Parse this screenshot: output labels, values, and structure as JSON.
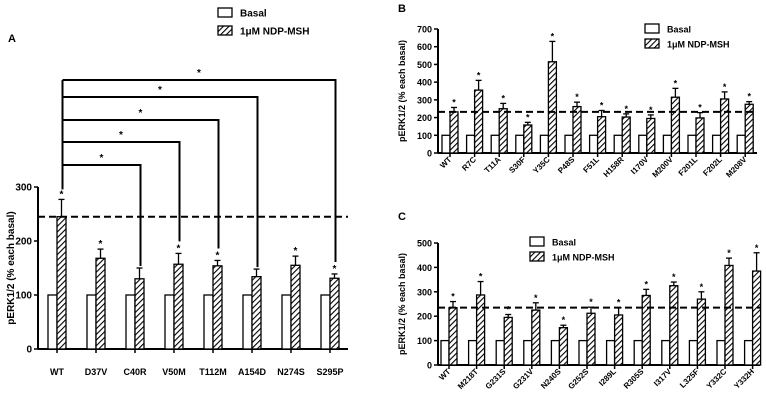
{
  "legend": {
    "basal": "Basal",
    "treated": "1μM NDP-MSH"
  },
  "chart_data": [
    {
      "panel": "A",
      "type": "bar",
      "ylabel": "pERK1/2 (% each basal)",
      "ylim": [
        0,
        300
      ],
      "yticks": [
        "0",
        "100",
        "200",
        "300"
      ],
      "reference_line": 245,
      "categories": [
        "WT",
        "D37V",
        "C40R",
        "V50M",
        "T112M",
        "A154D",
        "N274S",
        "S295P"
      ],
      "series": [
        {
          "name": "Basal",
          "values": [
            100,
            100,
            100,
            100,
            100,
            100,
            100,
            100
          ]
        },
        {
          "name": "1μM NDP-MSH",
          "values": [
            245,
            168,
            130,
            157,
            154,
            134,
            155,
            131
          ],
          "errors": [
            32,
            17,
            20,
            20,
            10,
            14,
            17,
            8
          ],
          "significant": [
            true,
            true,
            false,
            true,
            true,
            false,
            true,
            true
          ]
        }
      ],
      "brackets": [
        {
          "from": "WT",
          "to": "C40R",
          "label": "*"
        },
        {
          "from": "WT",
          "to": "V50M",
          "label": "*"
        },
        {
          "from": "WT",
          "to": "T112M",
          "label": "*"
        },
        {
          "from": "WT",
          "to": "A154D",
          "label": "*"
        },
        {
          "from": "WT",
          "to": "S295P",
          "label": "*"
        }
      ]
    },
    {
      "panel": "B",
      "type": "bar",
      "ylabel": "pERK1/2 (% each basal)",
      "ylim": [
        0,
        700
      ],
      "yticks": [
        "0",
        "100",
        "200",
        "300",
        "400",
        "500",
        "600",
        "700"
      ],
      "reference_line": 232,
      "categories": [
        "WT",
        "R7C",
        "T11A",
        "S30F",
        "Y35C",
        "P48S",
        "F51L",
        "H158R",
        "I170V",
        "M200V",
        "F201L",
        "F202L",
        "M208V"
      ],
      "series": [
        {
          "name": "Basal",
          "values": [
            100,
            100,
            100,
            100,
            100,
            100,
            100,
            100,
            100,
            100,
            100,
            100,
            100
          ]
        },
        {
          "name": "1μM NDP-MSH",
          "values": [
            232,
            355,
            250,
            158,
            515,
            262,
            205,
            203,
            195,
            315,
            198,
            305,
            275
          ],
          "errors": [
            25,
            55,
            30,
            15,
            115,
            25,
            35,
            18,
            20,
            50,
            30,
            40,
            15
          ],
          "significant": [
            true,
            true,
            true,
            true,
            true,
            true,
            true,
            true,
            true,
            true,
            true,
            true,
            true
          ]
        }
      ]
    },
    {
      "panel": "C",
      "type": "bar",
      "ylabel": "pERK1/2 (% each basal)",
      "ylim": [
        0,
        500
      ],
      "yticks": [
        "0",
        "100",
        "200",
        "300",
        "400",
        "500"
      ],
      "reference_line": 235,
      "categories": [
        "WT",
        "M218T",
        "G231S",
        "G231V",
        "N240S",
        "G252S",
        "I289L",
        "R305S",
        "I317V",
        "L325F",
        "Y332C",
        "Y332H"
      ],
      "series": [
        {
          "name": "Basal",
          "values": [
            100,
            100,
            100,
            100,
            100,
            100,
            100,
            100,
            100,
            100,
            100,
            100
          ]
        },
        {
          "name": "1μM NDP-MSH",
          "values": [
            235,
            287,
            195,
            225,
            153,
            212,
            205,
            285,
            325,
            270,
            408,
            385
          ],
          "errors": [
            25,
            55,
            12,
            30,
            10,
            25,
            30,
            25,
            15,
            30,
            30,
            75
          ],
          "significant": [
            true,
            true,
            true,
            true,
            true,
            true,
            true,
            true,
            true,
            true,
            true,
            true
          ]
        }
      ]
    }
  ]
}
